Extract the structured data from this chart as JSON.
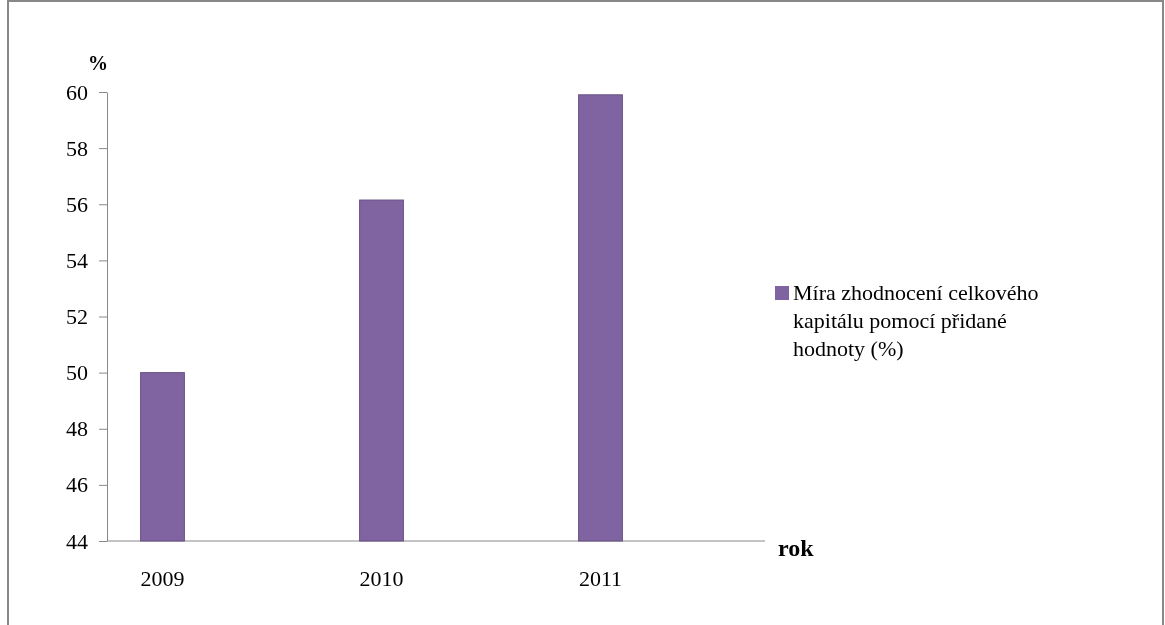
{
  "chart_data": {
    "type": "bar",
    "xlabel": "rok",
    "ylabel": "%",
    "categories": [
      "2009",
      "2010",
      "2011"
    ],
    "series": [
      {
        "name": "Míra zhodnocení celkového kapitálu pomocí přidané hodnoty (%)",
        "color": "#8064a2",
        "values": [
          50.0,
          56.15,
          59.9
        ]
      }
    ],
    "ylim": [
      44,
      60
    ],
    "yticks": [
      44,
      46,
      48,
      50,
      52,
      54,
      56,
      58,
      60
    ],
    "grid": false,
    "legend": "right"
  }
}
